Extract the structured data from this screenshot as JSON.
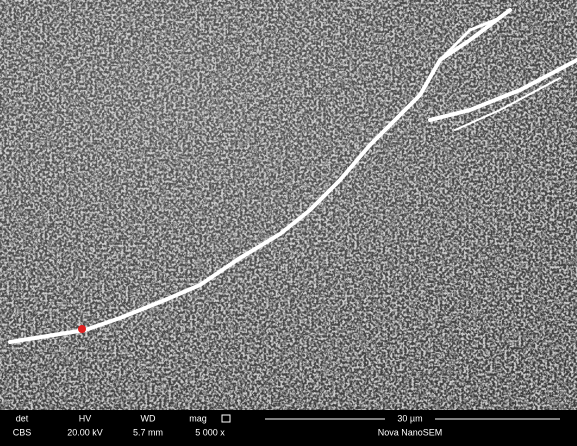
{
  "info_bar": {
    "labels": [
      "det",
      "HV",
      "WD",
      "mag"
    ],
    "values": [
      "CBS",
      "20.00 kV",
      "5.7 mm",
      "5 000 x"
    ],
    "scale": "30 µm",
    "instrument": "Nova NanoSEM"
  }
}
